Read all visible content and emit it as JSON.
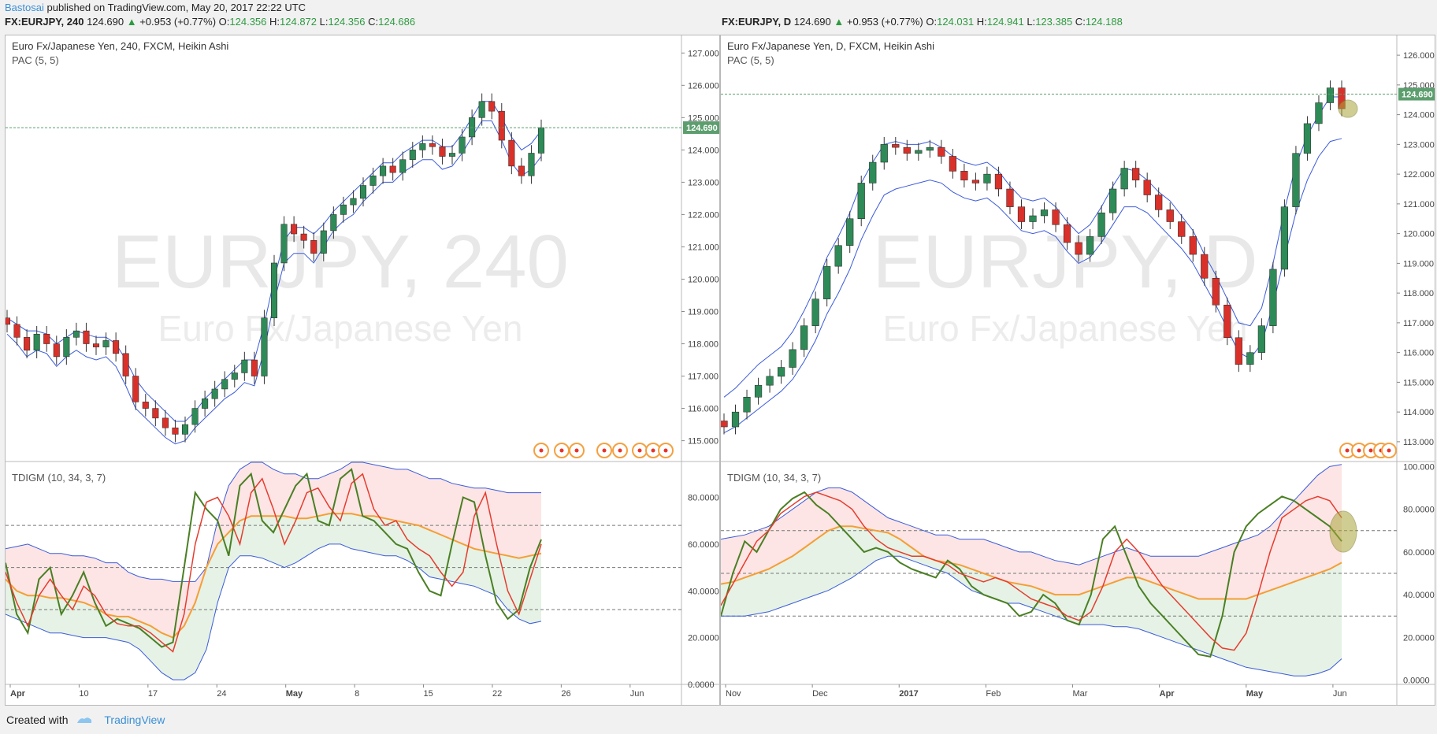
{
  "topbar": {
    "author": "Bastosai",
    "text": "published on TradingView.com, May 20, 2017 22:22 UTC"
  },
  "footer": {
    "created": "Created with",
    "brand": "TradingView"
  },
  "colors": {
    "up": "#2e8b57",
    "down": "#d9312a",
    "pac": "#3b5bdb",
    "green_line": "#4a7f23",
    "red_line": "#e63c2e",
    "orange_line": "#f59e35",
    "last": "#5c9e6e"
  },
  "panels": [
    {
      "symbol": "FX:EURJPY, 240",
      "last": "124.690",
      "chg": "+0.953 (+0.77%)",
      "o": "124.356",
      "h": "124.872",
      "l": "124.356",
      "c": "124.686",
      "title": "Euro Fx/Japanese Yen, 240, FXCM, Heikin Ashi",
      "sub": "PAC (5, 5)",
      "osc": "TDIGM (10, 34, 3, 7)",
      "watermark": "EURJPY, 240",
      "watermark2": "Euro Fx/Japanese Yen",
      "price_label": "124.690"
    },
    {
      "symbol": "FX:EURJPY, D",
      "last": "124.690",
      "chg": "+0.953 (+0.77%)",
      "o": "124.031",
      "h": "124.941",
      "l": "123.385",
      "c": "124.188",
      "title": "Euro Fx/Japanese Yen, D, FXCM, Heikin Ashi",
      "sub": "PAC (5, 5)",
      "osc": "TDIGM (10, 34, 3, 7)",
      "watermark": "EURJPY, D",
      "watermark2": "Euro Fx/Japanese Yen",
      "price_label": "124.690"
    }
  ],
  "chart_data": [
    {
      "type": "candlestick",
      "title": "Euro Fx/Japanese Yen, 240, FXCM, Heikin Ashi",
      "price_axis": [
        "127.000",
        "126.000",
        "125.000",
        "124.000",
        "123.000",
        "122.000",
        "121.000",
        "120.000",
        "119.000",
        "118.000",
        "117.000",
        "116.000",
        "115.000"
      ],
      "ylim": [
        114.6,
        127.3
      ],
      "x_ticks": [
        "Apr",
        "10",
        "17",
        "24",
        "May",
        "8",
        "15",
        "22",
        "26",
        "Jun"
      ],
      "last_price": 124.69,
      "closes": [
        118.6,
        118.2,
        117.8,
        118.3,
        118.0,
        117.6,
        118.2,
        118.4,
        118.0,
        117.9,
        118.1,
        117.7,
        117.0,
        116.2,
        116.0,
        115.7,
        115.4,
        115.2,
        115.5,
        116.0,
        116.3,
        116.6,
        116.9,
        117.1,
        117.5,
        117.0,
        118.8,
        120.5,
        121.7,
        121.4,
        121.2,
        120.8,
        121.5,
        122.0,
        122.3,
        122.5,
        122.9,
        123.2,
        123.5,
        123.3,
        123.7,
        124.0,
        124.2,
        124.1,
        123.8,
        123.9,
        124.4,
        125.0,
        125.5,
        125.2,
        124.3,
        123.5,
        123.2,
        123.9,
        124.69
      ],
      "pac_upper": [
        118.8,
        118.6,
        118.4,
        118.4,
        118.3,
        118.0,
        118.2,
        118.4,
        118.3,
        118.2,
        118.2,
        118.0,
        117.5,
        116.9,
        116.5,
        116.2,
        115.9,
        115.6,
        115.6,
        115.9,
        116.3,
        116.6,
        116.9,
        117.2,
        117.5,
        117.5,
        118.6,
        120.0,
        121.2,
        121.6,
        121.6,
        121.4,
        121.7,
        122.1,
        122.4,
        122.7,
        123.0,
        123.3,
        123.6,
        123.6,
        123.9,
        124.1,
        124.3,
        124.3,
        124.1,
        124.1,
        124.5,
        125.0,
        125.5,
        125.5,
        125.0,
        124.4,
        124.0,
        124.2,
        124.6
      ],
      "pac_lower": [
        118.3,
        118.0,
        117.6,
        117.8,
        117.7,
        117.3,
        117.6,
        117.8,
        117.6,
        117.5,
        117.6,
        117.3,
        116.7,
        116.0,
        115.7,
        115.4,
        115.1,
        114.9,
        115.0,
        115.4,
        115.7,
        116.0,
        116.3,
        116.5,
        116.8,
        116.7,
        117.8,
        119.3,
        120.5,
        120.8,
        120.8,
        120.5,
        121.0,
        121.5,
        121.8,
        122.0,
        122.4,
        122.7,
        123.0,
        123.0,
        123.3,
        123.5,
        123.7,
        123.7,
        123.4,
        123.5,
        123.9,
        124.4,
        124.9,
        124.9,
        124.3,
        123.6,
        123.2,
        123.4,
        123.8
      ],
      "tdi": {
        "ylim": [
          0,
          95
        ],
        "axis": [
          "80.0000",
          "60.0000",
          "40.0000",
          "20.0000",
          "0.0000"
        ],
        "levels": [
          68,
          50,
          32
        ],
        "upper_band": [
          58,
          59,
          60,
          58,
          56,
          56,
          55,
          55,
          54,
          52,
          52,
          48,
          46,
          45,
          45,
          44,
          44,
          44,
          50,
          70,
          85,
          92,
          95,
          95,
          92,
          90,
          90,
          88,
          88,
          90,
          92,
          95,
          95,
          94,
          93,
          92,
          92,
          90,
          88,
          88,
          86,
          85,
          84,
          84,
          83,
          82,
          82,
          82,
          82
        ],
        "lower_band": [
          30,
          28,
          26,
          24,
          22,
          22,
          21,
          20,
          20,
          20,
          19,
          18,
          15,
          10,
          5,
          2,
          2,
          5,
          15,
          35,
          50,
          55,
          55,
          54,
          52,
          50,
          52,
          55,
          58,
          60,
          60,
          58,
          57,
          56,
          55,
          55,
          53,
          50,
          46,
          45,
          44,
          43,
          42,
          40,
          38,
          32,
          28,
          26,
          27
        ],
        "signal": [
          45,
          40,
          38,
          38,
          37,
          37,
          36,
          35,
          33,
          30,
          29,
          29,
          27,
          25,
          22,
          20,
          25,
          35,
          50,
          60,
          65,
          70,
          72,
          72,
          72,
          72,
          71,
          71,
          72,
          73,
          73,
          73,
          72,
          72,
          71,
          70,
          69,
          68,
          66,
          64,
          62,
          60,
          58,
          57,
          56,
          55,
          54,
          55,
          56
        ],
        "rsi_line": [
          48,
          35,
          25,
          38,
          45,
          38,
          32,
          42,
          38,
          30,
          26,
          25,
          25,
          22,
          18,
          14,
          30,
          60,
          78,
          80,
          72,
          60,
          82,
          88,
          75,
          60,
          70,
          82,
          84,
          76,
          70,
          86,
          90,
          75,
          68,
          70,
          62,
          58,
          55,
          48,
          42,
          48,
          72,
          82,
          60,
          40,
          30,
          45,
          60
        ],
        "price_line": [
          52,
          30,
          22,
          45,
          50,
          30,
          38,
          48,
          35,
          25,
          28,
          26,
          24,
          20,
          16,
          18,
          50,
          82,
          75,
          70,
          55,
          85,
          90,
          70,
          65,
          75,
          85,
          90,
          70,
          68,
          88,
          92,
          72,
          70,
          65,
          60,
          58,
          48,
          40,
          38,
          60,
          80,
          78,
          55,
          35,
          28,
          32,
          50,
          62
        ]
      }
    },
    {
      "type": "candlestick",
      "title": "Euro Fx/Japanese Yen, D, FXCM, Heikin Ashi",
      "price_axis": [
        "126.000",
        "125.000",
        "124.000",
        "123.000",
        "122.000",
        "121.000",
        "120.000",
        "119.000",
        "118.000",
        "117.000",
        "116.000",
        "115.000",
        "114.000",
        "113.000"
      ],
      "ylim": [
        112.6,
        126.4
      ],
      "x_ticks": [
        "Nov",
        "Dec",
        "2017",
        "Feb",
        "Mar",
        "Apr",
        "May",
        "Jun"
      ],
      "last_price": 124.69,
      "closes": [
        113.5,
        114.0,
        114.5,
        114.9,
        115.2,
        115.5,
        116.1,
        116.9,
        117.8,
        118.9,
        119.6,
        120.5,
        121.7,
        122.4,
        123.0,
        122.9,
        122.7,
        122.8,
        122.9,
        122.6,
        122.1,
        121.8,
        121.7,
        122.0,
        121.5,
        120.9,
        120.4,
        120.6,
        120.8,
        120.3,
        119.7,
        119.3,
        119.9,
        120.7,
        121.5,
        122.2,
        121.8,
        121.3,
        120.8,
        120.4,
        119.9,
        119.3,
        118.5,
        117.6,
        116.5,
        115.6,
        116.0,
        116.9,
        118.8,
        120.9,
        122.7,
        123.7,
        124.4,
        124.9,
        124.2
      ],
      "pac_upper": [
        114.5,
        114.8,
        115.2,
        115.6,
        115.9,
        116.2,
        116.7,
        117.4,
        118.2,
        119.2,
        119.9,
        120.7,
        121.7,
        122.4,
        123.0,
        123.1,
        123.0,
        123.0,
        123.1,
        122.9,
        122.6,
        122.4,
        122.3,
        122.4,
        122.1,
        121.6,
        121.2,
        121.1,
        121.2,
        120.9,
        120.4,
        120.0,
        120.3,
        120.9,
        121.6,
        122.2,
        122.1,
        121.8,
        121.4,
        121.1,
        120.6,
        120.1,
        119.3,
        118.6,
        117.8,
        117.0,
        116.9,
        117.5,
        119.0,
        120.8,
        122.3,
        123.3,
        124.0,
        124.6,
        124.6
      ],
      "pac_lower": [
        113.3,
        113.5,
        113.8,
        114.1,
        114.4,
        114.7,
        115.1,
        115.7,
        116.4,
        117.3,
        118.0,
        118.8,
        119.8,
        120.6,
        121.3,
        121.5,
        121.6,
        121.7,
        121.8,
        121.7,
        121.4,
        121.2,
        121.1,
        121.2,
        120.9,
        120.5,
        120.1,
        120.0,
        120.1,
        119.9,
        119.4,
        119.0,
        119.2,
        119.7,
        120.3,
        120.9,
        120.9,
        120.7,
        120.3,
        119.9,
        119.5,
        119.0,
        118.3,
        117.6,
        116.8,
        116.0,
        115.8,
        116.3,
        117.6,
        119.2,
        120.7,
        121.8,
        122.6,
        123.1,
        123.2
      ],
      "tdi": {
        "ylim": [
          -2,
          102
        ],
        "axis": [
          "100.0000",
          "80.0000",
          "60.0000",
          "40.0000",
          "20.0000",
          "0.0000"
        ],
        "levels": [
          70,
          50,
          30
        ],
        "upper_band": [
          66,
          67,
          68,
          70,
          72,
          76,
          80,
          84,
          88,
          90,
          90,
          88,
          84,
          80,
          76,
          74,
          72,
          70,
          68,
          68,
          66,
          66,
          66,
          64,
          62,
          60,
          60,
          58,
          56,
          55,
          54,
          56,
          58,
          60,
          62,
          60,
          58,
          58,
          58,
          58,
          58,
          60,
          62,
          64,
          66,
          68,
          72,
          78,
          84,
          90,
          96,
          100,
          101
        ],
        "lower_band": [
          30,
          30,
          30,
          31,
          32,
          34,
          36,
          38,
          40,
          42,
          45,
          48,
          52,
          56,
          58,
          58,
          56,
          54,
          52,
          50,
          46,
          42,
          40,
          38,
          36,
          36,
          34,
          32,
          30,
          28,
          26,
          26,
          26,
          25,
          25,
          24,
          22,
          20,
          18,
          16,
          14,
          12,
          10,
          8,
          6,
          5,
          4,
          3,
          2,
          2,
          3,
          5,
          10
        ],
        "signal": [
          45,
          46,
          48,
          50,
          52,
          55,
          58,
          62,
          66,
          70,
          72,
          72,
          71,
          70,
          69,
          66,
          62,
          58,
          56,
          55,
          54,
          52,
          50,
          48,
          46,
          45,
          44,
          42,
          40,
          40,
          40,
          42,
          44,
          46,
          48,
          48,
          46,
          44,
          42,
          40,
          38,
          38,
          38,
          38,
          38,
          40,
          42,
          44,
          46,
          48,
          50,
          52,
          55
        ],
        "rsi_line": [
          35,
          45,
          55,
          65,
          70,
          78,
          82,
          86,
          88,
          86,
          84,
          80,
          72,
          66,
          62,
          60,
          58,
          58,
          56,
          54,
          50,
          48,
          46,
          48,
          46,
          42,
          38,
          36,
          34,
          30,
          28,
          32,
          44,
          60,
          66,
          60,
          52,
          44,
          38,
          32,
          26,
          20,
          15,
          14,
          22,
          40,
          60,
          76,
          80,
          84,
          86,
          84,
          76
        ],
        "price_line": [
          30,
          50,
          65,
          60,
          70,
          80,
          85,
          88,
          82,
          78,
          72,
          66,
          60,
          62,
          60,
          55,
          52,
          50,
          48,
          56,
          52,
          44,
          40,
          38,
          36,
          30,
          32,
          40,
          36,
          28,
          26,
          40,
          66,
          72,
          58,
          44,
          36,
          30,
          24,
          18,
          12,
          11,
          30,
          60,
          72,
          78,
          82,
          86,
          84,
          80,
          76,
          72,
          65
        ]
      }
    }
  ]
}
